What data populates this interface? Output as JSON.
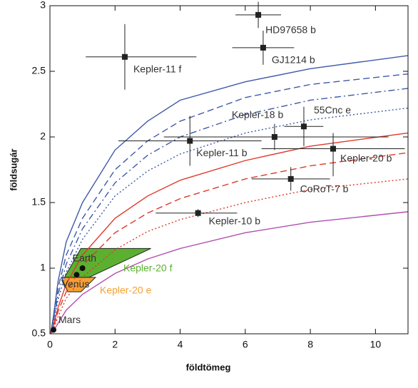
{
  "chart_data": {
    "type": "scatter",
    "x_label": "földtömeg",
    "y_label": "földsugár",
    "xlim": [
      0,
      11
    ],
    "ylim": [
      0.5,
      3
    ],
    "xticks": [
      0,
      2,
      4,
      6,
      8,
      10
    ],
    "yticks": [
      0.5,
      1,
      1.5,
      2,
      2.5,
      3
    ],
    "points": {
      "names": [
        "HD97658 b",
        "GJ1214 b",
        "Kepler-11 f",
        "Kepler-18 b",
        "55Cnc e",
        "Kepler-11 b",
        "Kepler-20 b",
        "CoRoT-7 b",
        "Kepler-10 b"
      ],
      "x": [
        6.4,
        6.55,
        2.3,
        6.9,
        7.8,
        4.3,
        8.7,
        7.4,
        4.55
      ],
      "y": [
        2.93,
        2.68,
        2.61,
        2.0,
        2.08,
        1.97,
        1.91,
        1.68,
        1.42
      ],
      "xerr": [
        [
          0.7,
          0.7
        ],
        [
          0.95,
          0.95
        ],
        [
          1.2,
          2.2
        ],
        [
          3.4,
          3.5
        ],
        [
          0.6,
          0.6
        ],
        [
          2.2,
          2.2
        ],
        [
          2.2,
          2.2
        ],
        [
          1.2,
          1.2
        ],
        [
          1.3,
          1.2
        ]
      ],
      "yerr": [
        [
          0.1,
          0.1
        ],
        [
          0.13,
          0.13
        ],
        [
          0.25,
          0.25
        ],
        [
          0.1,
          0.1
        ],
        [
          0.15,
          0.15
        ],
        [
          0.19,
          0.19
        ],
        [
          0.21,
          0.12
        ],
        [
          0.09,
          0.09
        ],
        [
          0.03,
          0.03
        ]
      ],
      "color": "#222222"
    },
    "planets": {
      "names": [
        "Earth",
        "Venus",
        "Mars"
      ],
      "x": [
        1,
        0.82,
        0.11
      ],
      "y": [
        1,
        0.95,
        0.53
      ],
      "color": "#111111"
    },
    "regions": [
      {
        "name": "Kepler-20 f",
        "color": "#5bb030",
        "x": [
          0.45,
          0.95,
          3.1,
          1.2
        ],
        "y": [
          0.93,
          1.15,
          1.15,
          0.93
        ]
      },
      {
        "name": "Kepler-20 e",
        "color": "#f5a033",
        "x": [
          0.35,
          1.4,
          0.95,
          0.55
        ],
        "y": [
          0.93,
          0.93,
          0.82,
          0.82
        ]
      }
    ],
    "curve_x": [
      0.02,
      0.1,
      0.25,
      0.5,
      1,
      2,
      3,
      4,
      6,
      8,
      11
    ],
    "curves": [
      {
        "color": "#3f5aa8",
        "dash": "solid",
        "values": [
          0.5,
          0.62,
          0.9,
          1.2,
          1.5,
          1.9,
          2.12,
          2.28,
          2.42,
          2.52,
          2.62
        ]
      },
      {
        "color": "#3f5aa8",
        "dash": "dashed",
        "values": [
          0.5,
          0.6,
          0.85,
          1.1,
          1.38,
          1.75,
          1.97,
          2.12,
          2.3,
          2.4,
          2.48
        ]
      },
      {
        "color": "#3f5aa8",
        "dash": "dashdot",
        "values": [
          0.5,
          0.58,
          0.8,
          1.03,
          1.3,
          1.65,
          1.86,
          2.0,
          2.17,
          2.28,
          2.37
        ]
      },
      {
        "color": "#3f5aa8",
        "dash": "dotted",
        "values": [
          0.5,
          0.57,
          0.76,
          0.97,
          1.22,
          1.55,
          1.74,
          1.87,
          2.03,
          2.13,
          2.22
        ]
      },
      {
        "color": "#e0382a",
        "dash": "solid",
        "values": [
          0.5,
          0.55,
          0.7,
          0.88,
          1.1,
          1.38,
          1.55,
          1.67,
          1.82,
          1.93,
          2.03
        ]
      },
      {
        "color": "#e0382a",
        "dash": "dashed",
        "values": [
          0.5,
          0.54,
          0.67,
          0.82,
          1.02,
          1.27,
          1.42,
          1.53,
          1.68,
          1.78,
          1.88
        ]
      },
      {
        "color": "#e0382a",
        "dash": "dotted",
        "values": [
          0.5,
          0.53,
          0.63,
          0.77,
          0.93,
          1.14,
          1.28,
          1.37,
          1.5,
          1.6,
          1.68
        ]
      },
      {
        "color": "#b04fb0",
        "dash": "solid",
        "values": [
          0.5,
          0.52,
          0.58,
          0.68,
          0.8,
          0.96,
          1.07,
          1.15,
          1.27,
          1.35,
          1.43
        ]
      }
    ]
  }
}
